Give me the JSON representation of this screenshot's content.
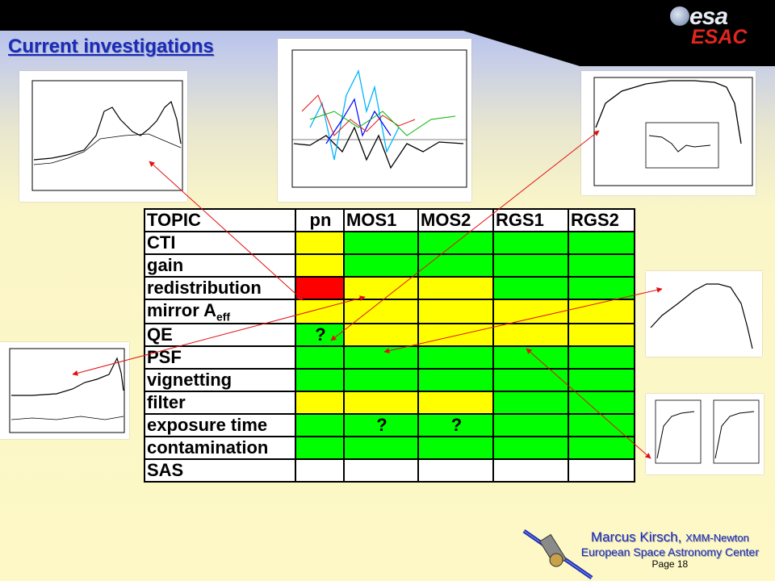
{
  "header": {
    "logo_top": "esa",
    "logo_bottom": "ESAC"
  },
  "title": "Current investigations",
  "table": {
    "columns": [
      "TOPIC",
      "pn",
      "MOS1",
      "MOS2",
      "RGS1",
      "RGS2"
    ],
    "rows": [
      {
        "topic": "CTI",
        "cells": [
          {
            "status": "yellow",
            "mark": ""
          },
          {
            "status": "green",
            "mark": ""
          },
          {
            "status": "green",
            "mark": ""
          },
          {
            "status": "green",
            "mark": ""
          },
          {
            "status": "green",
            "mark": ""
          }
        ]
      },
      {
        "topic": "gain",
        "cells": [
          {
            "status": "yellow",
            "mark": ""
          },
          {
            "status": "green",
            "mark": ""
          },
          {
            "status": "green",
            "mark": ""
          },
          {
            "status": "green",
            "mark": ""
          },
          {
            "status": "green",
            "mark": ""
          }
        ]
      },
      {
        "topic": "redistribution",
        "cells": [
          {
            "status": "red",
            "mark": ""
          },
          {
            "status": "yellow",
            "mark": ""
          },
          {
            "status": "yellow",
            "mark": ""
          },
          {
            "status": "green",
            "mark": ""
          },
          {
            "status": "green",
            "mark": ""
          }
        ]
      },
      {
        "topic": "mirror A",
        "topic_sub": "eff",
        "cells": [
          {
            "status": "yellow",
            "mark": ""
          },
          {
            "status": "yellow",
            "mark": ""
          },
          {
            "status": "yellow",
            "mark": ""
          },
          {
            "status": "yellow",
            "mark": ""
          },
          {
            "status": "yellow",
            "mark": ""
          }
        ]
      },
      {
        "topic": "QE",
        "cells": [
          {
            "status": "green",
            "mark": "?"
          },
          {
            "status": "yellow",
            "mark": ""
          },
          {
            "status": "yellow",
            "mark": ""
          },
          {
            "status": "yellow",
            "mark": ""
          },
          {
            "status": "yellow",
            "mark": ""
          }
        ]
      },
      {
        "topic": "PSF",
        "cells": [
          {
            "status": "green",
            "mark": ""
          },
          {
            "status": "green",
            "mark": ""
          },
          {
            "status": "green",
            "mark": ""
          },
          {
            "status": "green",
            "mark": ""
          },
          {
            "status": "green",
            "mark": ""
          }
        ]
      },
      {
        "topic": "vignetting",
        "cells": [
          {
            "status": "green",
            "mark": ""
          },
          {
            "status": "green",
            "mark": ""
          },
          {
            "status": "green",
            "mark": ""
          },
          {
            "status": "green",
            "mark": ""
          },
          {
            "status": "green",
            "mark": ""
          }
        ]
      },
      {
        "topic": "filter",
        "cells": [
          {
            "status": "yellow",
            "mark": ""
          },
          {
            "status": "yellow",
            "mark": ""
          },
          {
            "status": "yellow",
            "mark": ""
          },
          {
            "status": "green",
            "mark": ""
          },
          {
            "status": "green",
            "mark": ""
          }
        ]
      },
      {
        "topic": "exposure time",
        "cells": [
          {
            "status": "green",
            "mark": ""
          },
          {
            "status": "green",
            "mark": "?"
          },
          {
            "status": "green",
            "mark": "?"
          },
          {
            "status": "green",
            "mark": ""
          },
          {
            "status": "green",
            "mark": ""
          }
        ]
      },
      {
        "topic": "contamination",
        "cells": [
          {
            "status": "green",
            "mark": ""
          },
          {
            "status": "green",
            "mark": ""
          },
          {
            "status": "green",
            "mark": ""
          },
          {
            "status": "green",
            "mark": ""
          },
          {
            "status": "green",
            "mark": ""
          }
        ]
      },
      {
        "topic": "SAS",
        "cells": [
          {
            "status": "white",
            "mark": ""
          },
          {
            "status": "white",
            "mark": ""
          },
          {
            "status": "white",
            "mark": ""
          },
          {
            "status": "white",
            "mark": ""
          },
          {
            "status": "white",
            "mark": ""
          }
        ]
      }
    ]
  },
  "colors": {
    "yellow": "#ffff00",
    "green": "#00ff00",
    "red": "#ff0000",
    "white": "#ffffff",
    "title_blue": "#1a2bb5",
    "arrow_red": "#e01010"
  },
  "footer": {
    "name": "Marcus Kirsch,",
    "mission": "XMM-Newton",
    "center": "European Space Astronomy Center",
    "page": "Page 18"
  }
}
